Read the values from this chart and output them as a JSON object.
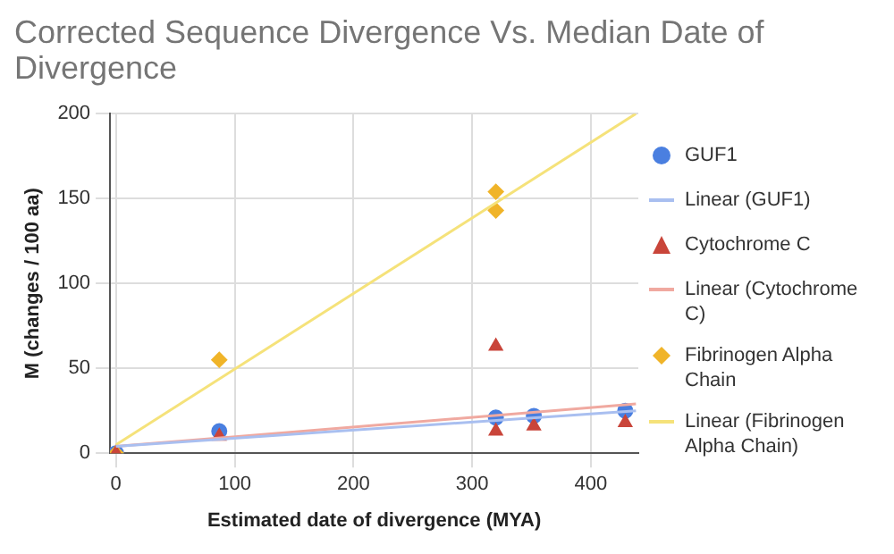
{
  "chart_data": {
    "type": "scatter",
    "title": "Corrected Sequence Divergence Vs. Median Date of Divergence",
    "xlabel": "Estimated date of divergence (MYA)",
    "ylabel": "M (changes / 100 aa)",
    "xlim": [
      -5,
      440
    ],
    "xticks": [
      0,
      100,
      200,
      300,
      400
    ],
    "ylim": [
      0,
      200
    ],
    "yticks": [
      0,
      50,
      100,
      150,
      200
    ],
    "grid": true,
    "legend": "right",
    "series": [
      {
        "name": "GUF1",
        "type": "scatter",
        "marker": "circle",
        "color": "#4a7fe0",
        "x": [
          0,
          87,
          320,
          352,
          429
        ],
        "values": [
          0,
          13,
          21,
          22,
          25
        ]
      },
      {
        "name": "Linear (GUF1)",
        "type": "line",
        "marker": "none",
        "color": "#a9bff0",
        "x": [
          0,
          438
        ],
        "values": [
          4,
          25
        ]
      },
      {
        "name": "Cytochrome C",
        "type": "scatter",
        "marker": "triangle",
        "color": "#c9453a",
        "x": [
          0,
          87,
          320,
          320,
          352,
          429
        ],
        "values": [
          0,
          10,
          63,
          13,
          16,
          18
        ]
      },
      {
        "name": "Linear (Cytochrome C)",
        "type": "line",
        "marker": "none",
        "color": "#f0a9a0",
        "x": [
          0,
          438
        ],
        "values": [
          4,
          29
        ]
      },
      {
        "name": "Fibrinogen Alpha Chain",
        "type": "scatter",
        "marker": "diamond",
        "color": "#f0b429",
        "x": [
          0,
          87,
          320,
          320
        ],
        "values": [
          0,
          55,
          154,
          143
        ]
      },
      {
        "name": "Linear (Fibrinogen Alpha Chain)",
        "type": "line",
        "marker": "none",
        "color": "#f5e27a",
        "x": [
          0,
          438
        ],
        "values": [
          5,
          200
        ]
      }
    ]
  }
}
